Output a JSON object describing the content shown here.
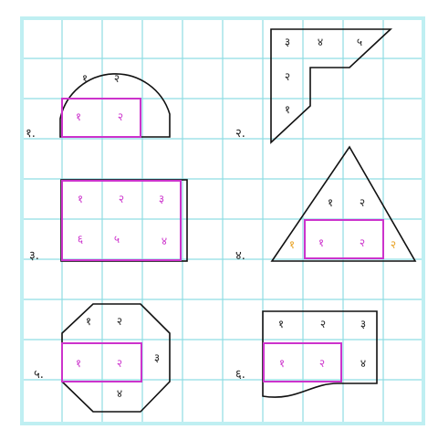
{
  "colors": {
    "grid": "#8fdde3",
    "grid_border": "#bfeff2",
    "shape": "#111111",
    "highlight": "#cc33cc",
    "digit_dark": "#222222",
    "digit_pink": "#cc33cc",
    "digit_orange": "#e8a020"
  },
  "panels": [
    {
      "label": "१.",
      "shape": "semicircle-on-rectangle",
      "cells": [
        {
          "text": "१",
          "color": "dark"
        },
        {
          "text": "२",
          "color": "dark"
        },
        {
          "text": "१",
          "color": "pink"
        },
        {
          "text": "२",
          "color": "pink"
        }
      ]
    },
    {
      "label": "२.",
      "shape": "l-shaped-polygon",
      "cells": [
        {
          "text": "३",
          "color": "dark"
        },
        {
          "text": "४",
          "color": "dark"
        },
        {
          "text": "५",
          "color": "dark"
        },
        {
          "text": "२",
          "color": "dark"
        },
        {
          "text": "१",
          "color": "dark"
        }
      ]
    },
    {
      "label": "३.",
      "shape": "rectangle",
      "cells": [
        {
          "text": "१",
          "color": "pink"
        },
        {
          "text": "२",
          "color": "pink"
        },
        {
          "text": "३",
          "color": "pink"
        },
        {
          "text": "६",
          "color": "pink"
        },
        {
          "text": "५",
          "color": "pink"
        },
        {
          "text": "४",
          "color": "pink"
        }
      ]
    },
    {
      "label": "४.",
      "shape": "triangle",
      "cells": [
        {
          "text": "१",
          "color": "dark"
        },
        {
          "text": "२",
          "color": "dark"
        },
        {
          "text": "१",
          "color": "orange"
        },
        {
          "text": "१",
          "color": "pink"
        },
        {
          "text": "२",
          "color": "pink"
        },
        {
          "text": "२",
          "color": "orange"
        }
      ]
    },
    {
      "label": "५.",
      "shape": "octagon",
      "cells": [
        {
          "text": "१",
          "color": "dark"
        },
        {
          "text": "२",
          "color": "dark"
        },
        {
          "text": "१",
          "color": "pink"
        },
        {
          "text": "२",
          "color": "pink"
        },
        {
          "text": "३",
          "color": "dark"
        },
        {
          "text": "४",
          "color": "dark"
        }
      ]
    },
    {
      "label": "६.",
      "shape": "rectangle-with-wavy-bottom",
      "cells": [
        {
          "text": "१",
          "color": "dark"
        },
        {
          "text": "२",
          "color": "dark"
        },
        {
          "text": "३",
          "color": "dark"
        },
        {
          "text": "१",
          "color": "pink"
        },
        {
          "text": "२",
          "color": "pink"
        },
        {
          "text": "४",
          "color": "dark"
        }
      ]
    }
  ]
}
